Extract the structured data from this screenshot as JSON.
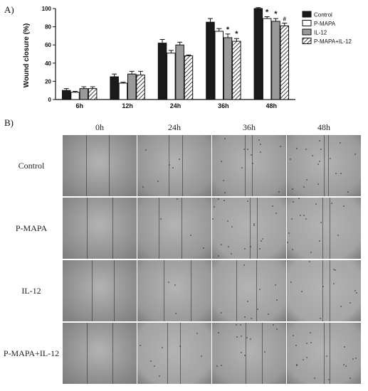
{
  "panel_a_label": "A)",
  "panel_b_label": "B)",
  "chart_data": {
    "type": "bar",
    "ylabel": "Wound closure (%)",
    "xlabel": "",
    "ylim": [
      0,
      100
    ],
    "yticks": [
      0,
      20,
      40,
      60,
      80,
      100
    ],
    "categories": [
      "6h",
      "12h",
      "24h",
      "36h",
      "48h"
    ],
    "legend_position": "top-right",
    "series": [
      {
        "name": "Control",
        "fill": "#1a1a1a",
        "pattern": "solid",
        "values": [
          10,
          25,
          62,
          85,
          100
        ],
        "errors": [
          2,
          3,
          4,
          4,
          1
        ]
      },
      {
        "name": "P-MAPA",
        "fill": "#ffffff",
        "pattern": "solid",
        "values": [
          8,
          18,
          51,
          75,
          89
        ],
        "errors": [
          1,
          1,
          3,
          3,
          2
        ]
      },
      {
        "name": "IL-12",
        "fill": "#9a9a9a",
        "pattern": "solid",
        "values": [
          12,
          28,
          60,
          68,
          86
        ],
        "errors": [
          2,
          3,
          3,
          4,
          3
        ]
      },
      {
        "name": "P-MAPA+IL-12",
        "fill": "#ffffff",
        "pattern": "hatch",
        "values": [
          12,
          27,
          48,
          64,
          81
        ],
        "errors": [
          2,
          4,
          1,
          3,
          3
        ]
      }
    ],
    "annotations": [
      {
        "category": "36h",
        "series": "IL-12",
        "text": "*"
      },
      {
        "category": "36h",
        "series": "P-MAPA+IL-12",
        "text": "*"
      },
      {
        "category": "48h",
        "series": "P-MAPA",
        "text": "*"
      },
      {
        "category": "48h",
        "series": "IL-12",
        "text": "*"
      },
      {
        "category": "48h",
        "series": "P-MAPA+IL-12",
        "text": "#"
      }
    ]
  },
  "grid": {
    "columns": [
      "0h",
      "24h",
      "36h",
      "48h"
    ],
    "rows": [
      "Control",
      "P-MAPA",
      "IL-12",
      "P-MAPA+IL-12"
    ]
  }
}
